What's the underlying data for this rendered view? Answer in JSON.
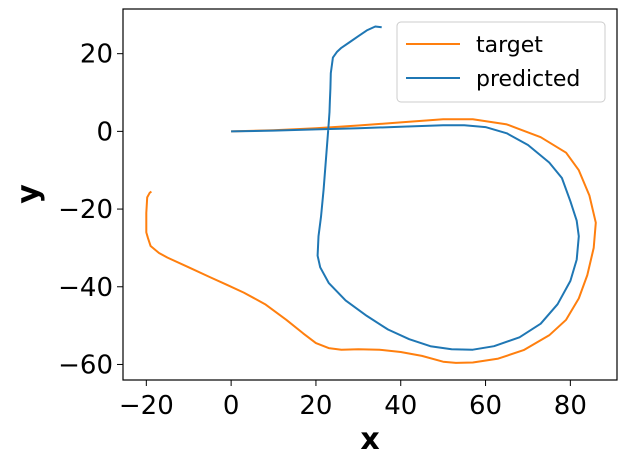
{
  "chart_data": {
    "type": "line",
    "xlabel": "x",
    "ylabel": "y",
    "xlim": [
      -25.5,
      91
    ],
    "ylim": [
      -64,
      31.5
    ],
    "xticks": [
      -20,
      0,
      20,
      40,
      60,
      80
    ],
    "yticks": [
      20,
      0,
      -20,
      -40,
      -60
    ],
    "xtick_labels": [
      "−20",
      "0",
      "20",
      "40",
      "60",
      "80"
    ],
    "ytick_labels": [
      "20",
      "0",
      "−20",
      "−40",
      "−60"
    ],
    "grid": false,
    "legend_position": "top-right",
    "series": [
      {
        "name": "target",
        "color": "#ff7f0e",
        "x": [
          0,
          10,
          20,
          30,
          40,
          50,
          57,
          65,
          73,
          79,
          82,
          84.5,
          86,
          85.5,
          84,
          82,
          79,
          75,
          69,
          63,
          57,
          53,
          50,
          45,
          40,
          35,
          30,
          26,
          23,
          20,
          17,
          13,
          8,
          3,
          -1,
          -5,
          -10,
          -15,
          -17,
          -19,
          -19.6,
          -20,
          -20,
          -19.8,
          -19.2,
          -18.8
        ],
        "y": [
          0,
          0.3,
          0.8,
          1.5,
          2.3,
          3.1,
          3.1,
          1.8,
          -1.5,
          -5.5,
          -10,
          -16.5,
          -23.5,
          -30,
          -37,
          -43,
          -48.5,
          -52.5,
          -56.3,
          -58.5,
          -59.5,
          -59.6,
          -59.3,
          -57.8,
          -56.8,
          -56.2,
          -56.1,
          -56.2,
          -55.8,
          -54.5,
          -52,
          -48.5,
          -44.5,
          -41.5,
          -39.5,
          -37.5,
          -35,
          -32.5,
          -31.3,
          -29.5,
          -27.5,
          -26,
          -21,
          -17,
          -15.8,
          -15.5
        ]
      },
      {
        "name": "predicted",
        "color": "#1f77b4",
        "x": [
          0,
          10,
          20,
          30,
          40,
          50,
          55,
          60,
          65,
          70,
          75,
          78,
          80,
          81.5,
          82,
          81.5,
          80,
          77,
          73,
          68,
          62,
          57,
          52,
          47,
          42,
          37,
          32,
          27,
          23,
          21,
          20.4,
          20.6,
          21.2,
          21.8,
          22.3,
          22.8,
          23,
          23.2,
          23.3,
          23.4,
          23.5,
          24,
          25,
          26,
          28,
          30,
          32,
          34,
          35.5
        ],
        "y": [
          0,
          0.2,
          0.5,
          0.8,
          1.2,
          1.6,
          1.6,
          1.1,
          -0.5,
          -3.5,
          -8,
          -12,
          -18,
          -23,
          -27,
          -33,
          -38.5,
          -44.5,
          -49.5,
          -53,
          -55.3,
          -56.2,
          -56.1,
          -55.3,
          -53.5,
          -51,
          -47.5,
          -43.5,
          -39,
          -35,
          -32,
          -27,
          -22,
          -15,
          -8,
          -1,
          2,
          5,
          8,
          11,
          15,
          19,
          20.5,
          21.5,
          23,
          24.5,
          26,
          27,
          26.8
        ]
      }
    ]
  }
}
